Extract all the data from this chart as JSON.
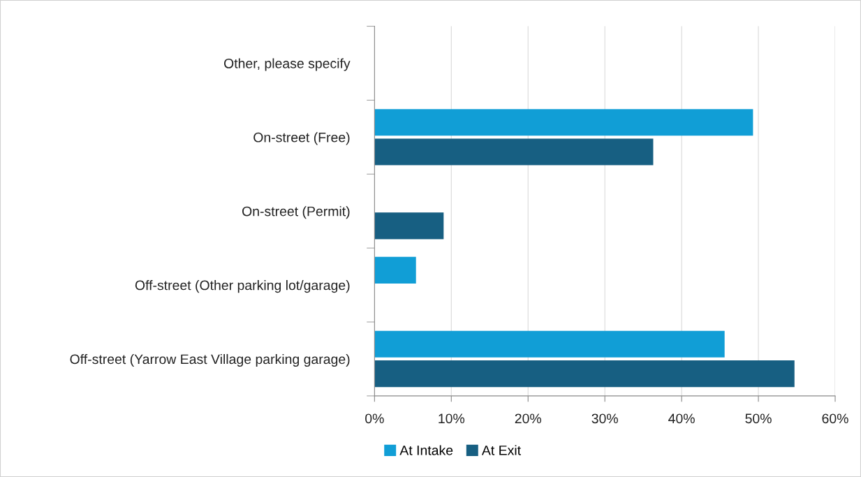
{
  "chart_data": {
    "type": "bar",
    "orientation": "horizontal",
    "categories": [
      "Other, please specify",
      "On-street (Free)",
      "On-street (Permit)",
      "Off-street (Other parking lot/garage)",
      "Off-street (Yarrow East Village parking garage)"
    ],
    "series": [
      {
        "name": "At Intake",
        "color": "#119ed6",
        "values": [
          0,
          49.3,
          0,
          5.4,
          45.6
        ]
      },
      {
        "name": "At Exit",
        "color": "#175f82",
        "values": [
          0,
          36.3,
          9.0,
          0,
          54.7
        ]
      }
    ],
    "xlim": [
      0,
      60
    ],
    "xticks": [
      {
        "value": 0,
        "label": "0%"
      },
      {
        "value": 10,
        "label": "10%"
      },
      {
        "value": 20,
        "label": "20%"
      },
      {
        "value": 30,
        "label": "30%"
      },
      {
        "value": 40,
        "label": "40%"
      },
      {
        "value": 50,
        "label": "50%"
      },
      {
        "value": 60,
        "label": "60%"
      }
    ],
    "grid": "x",
    "legend": "bottom"
  }
}
